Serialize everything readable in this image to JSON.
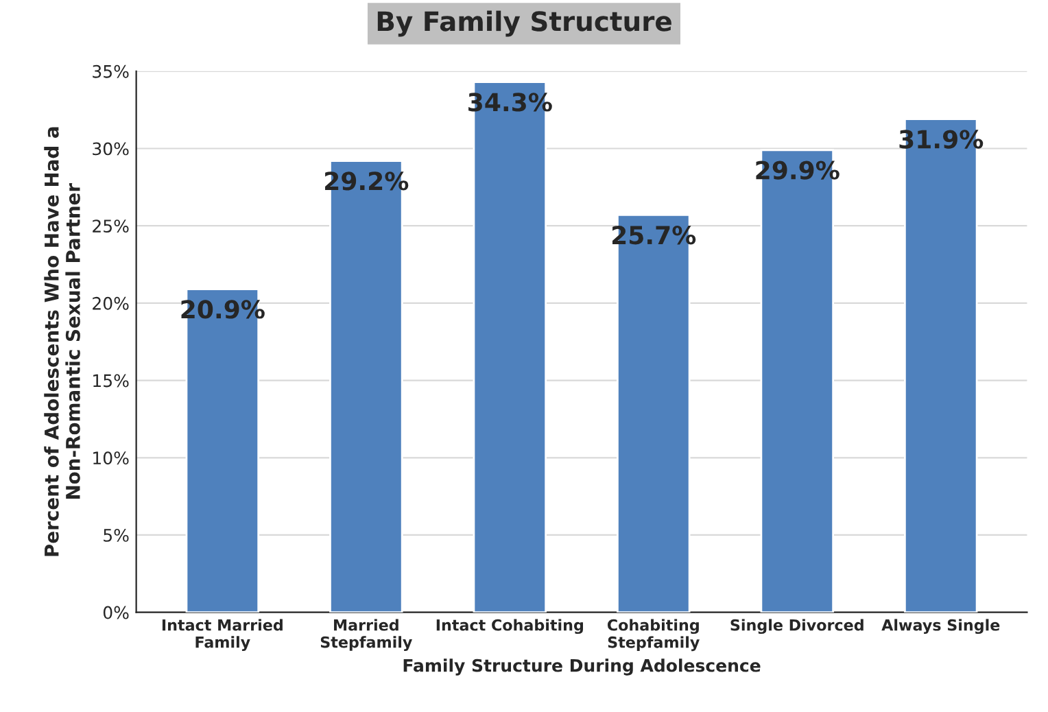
{
  "chart_data": {
    "type": "bar",
    "title": "By Family Structure",
    "xlabel": "Family Structure During Adolescence",
    "ylabel": "Percent of Adolescents Who Have Had a\nNon-Romantic Sexual Partner",
    "categories": [
      "Intact Married\nFamily",
      "Married\nStepfamily",
      "Intact Cohabiting",
      "Cohabiting\nStepfamily",
      "Single Divorced",
      "Always Single"
    ],
    "values": [
      20.9,
      29.2,
      34.3,
      25.7,
      29.9,
      31.9
    ],
    "value_labels": [
      "20.9%",
      "29.2%",
      "34.3%",
      "25.7%",
      "29.9%",
      "31.9%"
    ],
    "color": "#4f81bd",
    "ylim": [
      0,
      35
    ],
    "yticks": [
      {
        "value": 0,
        "label": "0%"
      },
      {
        "value": 5,
        "label": "5%"
      },
      {
        "value": 10,
        "label": "10%"
      },
      {
        "value": 15,
        "label": "15%"
      },
      {
        "value": 20,
        "label": "20%"
      },
      {
        "value": 25,
        "label": "25%"
      },
      {
        "value": 30,
        "label": "30%"
      },
      {
        "value": 35,
        "label": "35%"
      }
    ],
    "grid": "y"
  }
}
